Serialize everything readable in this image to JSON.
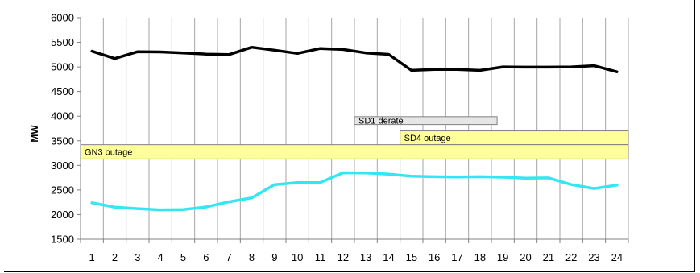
{
  "chart_data": {
    "type": "line",
    "title": "",
    "xlabel": "",
    "ylabel": "MW",
    "ylim": [
      1500,
      6000
    ],
    "yticks": [
      1500,
      2000,
      2500,
      3000,
      3500,
      4000,
      4500,
      5000,
      5500,
      6000
    ],
    "x": [
      1,
      2,
      3,
      4,
      5,
      6,
      7,
      8,
      9,
      10,
      11,
      12,
      13,
      14,
      15,
      16,
      17,
      18,
      19,
      20,
      21,
      22,
      23,
      24
    ],
    "grid": "vertical",
    "series": [
      {
        "color": "#000000",
        "values": [
          5320,
          5170,
          5310,
          5305,
          5285,
          5260,
          5250,
          5400,
          5340,
          5275,
          5375,
          5355,
          5285,
          5255,
          4930,
          4950,
          4950,
          4930,
          5000,
          4995,
          4995,
          5000,
          5025,
          4900
        ]
      },
      {
        "color": "#33e6f2",
        "values": [
          2240,
          2150,
          2120,
          2095,
          2100,
          2155,
          2260,
          2340,
          2610,
          2650,
          2650,
          2850,
          2845,
          2820,
          2780,
          2770,
          2765,
          2770,
          2760,
          2740,
          2745,
          2610,
          2530,
          2600
        ]
      }
    ],
    "bands": [
      {
        "label": "SD1 derate",
        "x_start": 12.5,
        "x_end": 18.75,
        "y_low": 3830,
        "y_high": 3990,
        "color": "#e6e6e6"
      },
      {
        "label": "SD4 outage",
        "x_start": 14.5,
        "x_end": 24.5,
        "y_low": 3420,
        "y_high": 3700,
        "color": "#ffff99"
      },
      {
        "label": "GN3 outage",
        "x_start": 0.5,
        "x_end": 24.5,
        "y_low": 3130,
        "y_high": 3420,
        "color": "#ffff99"
      }
    ]
  }
}
